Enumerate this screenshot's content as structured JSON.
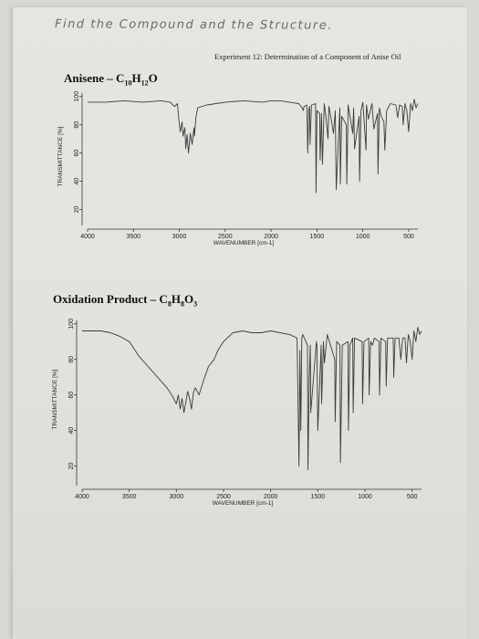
{
  "page": {
    "handwritten_note": "Find the Compound and the Structure.",
    "experiment_title": "Experiment 12: Determination of a Component of Anise Oil"
  },
  "chart_data": [
    {
      "type": "line",
      "title": "Anisene – C10H12O",
      "title_parts": {
        "name": "Anisene – C",
        "c": "10",
        "h": "H",
        "hsub": "12",
        "o": "O",
        "osub": ""
      },
      "xlabel": "WAVENUMBER [cm-1]",
      "ylabel": "TRANSMITTANCE [%]",
      "xlim": [
        4000,
        400
      ],
      "ylim": [
        10,
        105
      ],
      "x_ticks": [
        4000,
        3500,
        3000,
        2500,
        2000,
        1500,
        1000,
        500
      ],
      "y_ticks": [
        20,
        40,
        60,
        80,
        100
      ],
      "grid": false,
      "series": [
        {
          "x": [
            4000,
            3800,
            3600,
            3400,
            3200,
            3100,
            3070,
            3050,
            3020,
            3005,
            2990,
            2970,
            2960,
            2940,
            2930,
            2915,
            2900,
            2880,
            2860,
            2840,
            2835,
            2820,
            2800,
            2700,
            2600,
            2500,
            2300,
            2100,
            2000,
            1900,
            1800,
            1700,
            1660,
            1650,
            1640,
            1610,
            1600,
            1590,
            1580,
            1575,
            1560,
            1515,
            1510,
            1500,
            1470,
            1465,
            1450,
            1440,
            1420,
            1400,
            1380,
            1370,
            1350,
            1320,
            1300,
            1290,
            1250,
            1245,
            1230,
            1180,
            1175,
            1160,
            1110,
            1100,
            1090,
            1040,
            1035,
            1020,
            1000,
            965,
            960,
            940,
            900,
            880,
            840,
            835,
            820,
            800,
            770,
            760,
            740,
            700,
            640,
            620,
            600,
            570,
            560,
            540,
            520,
            500,
            480,
            460,
            440,
            420,
            400
          ],
          "y": [
            96,
            96,
            97,
            96,
            97,
            96,
            94,
            93,
            95,
            83,
            75,
            82,
            72,
            78,
            63,
            73,
            60,
            74,
            66,
            78,
            72,
            85,
            92,
            94,
            95,
            96,
            97,
            96,
            97,
            97,
            96,
            95,
            92,
            90,
            93,
            94,
            60,
            90,
            93,
            66,
            94,
            95,
            32,
            90,
            88,
            55,
            88,
            52,
            95,
            85,
            70,
            93,
            86,
            74,
            90,
            34,
            92,
            38,
            86,
            80,
            38,
            94,
            74,
            92,
            63,
            86,
            40,
            90,
            96,
            62,
            94,
            84,
            95,
            77,
            88,
            45,
            92,
            86,
            82,
            62,
            90,
            95,
            94,
            85,
            94,
            93,
            80,
            95,
            90,
            75,
            95,
            90,
            98,
            92,
            95
          ]
        }
      ]
    },
    {
      "type": "line",
      "title": "Oxidation Product – C8H8O3",
      "title_parts": {
        "name": "Oxidation Product – C",
        "c": "8",
        "h": "H",
        "hsub": "8",
        "o": "O",
        "osub": "3"
      },
      "xlabel": "WAVENUMBER [cm-1]",
      "ylabel": "TRANSMITTANCE [%]",
      "xlim": [
        4000,
        400
      ],
      "ylim": [
        10,
        105
      ],
      "x_ticks": [
        4000,
        3500,
        3000,
        2500,
        2000,
        1500,
        1000,
        500
      ],
      "y_ticks": [
        20,
        40,
        60,
        80,
        100
      ],
      "grid": false,
      "series": [
        {
          "x": [
            4000,
            3800,
            3700,
            3600,
            3500,
            3400,
            3300,
            3200,
            3100,
            3050,
            3000,
            2980,
            2960,
            2940,
            2920,
            2900,
            2880,
            2860,
            2840,
            2820,
            2800,
            2760,
            2700,
            2660,
            2600,
            2560,
            2500,
            2400,
            2300,
            2200,
            2100,
            2000,
            1900,
            1800,
            1720,
            1700,
            1690,
            1680,
            1670,
            1660,
            1610,
            1605,
            1590,
            1580,
            1575,
            1515,
            1510,
            1500,
            1465,
            1460,
            1440,
            1430,
            1400,
            1320,
            1315,
            1300,
            1265,
            1260,
            1240,
            1180,
            1175,
            1160,
            1130,
            1125,
            1110,
            1030,
            1025,
            1010,
            960,
            955,
            940,
            920,
            900,
            850,
            845,
            830,
            780,
            775,
            760,
            700,
            695,
            680,
            640,
            620,
            600,
            575,
            560,
            540,
            520,
            500,
            480,
            460,
            440,
            420,
            400
          ],
          "y": [
            96,
            96,
            95,
            93,
            90,
            82,
            76,
            70,
            64,
            60,
            55,
            60,
            52,
            58,
            50,
            56,
            62,
            58,
            52,
            61,
            64,
            60,
            70,
            76,
            80,
            85,
            90,
            95,
            96,
            95,
            95,
            96,
            95,
            94,
            92,
            20,
            85,
            40,
            92,
            94,
            88,
            18,
            70,
            88,
            50,
            90,
            88,
            40,
            88,
            55,
            90,
            78,
            94,
            80,
            45,
            90,
            88,
            22,
            88,
            90,
            40,
            88,
            92,
            50,
            92,
            90,
            55,
            90,
            92,
            60,
            90,
            88,
            92,
            90,
            60,
            92,
            90,
            65,
            92,
            92,
            70,
            92,
            92,
            80,
            92,
            92,
            78,
            94,
            90,
            80,
            96,
            90,
            98,
            94,
            96
          ]
        }
      ]
    }
  ]
}
